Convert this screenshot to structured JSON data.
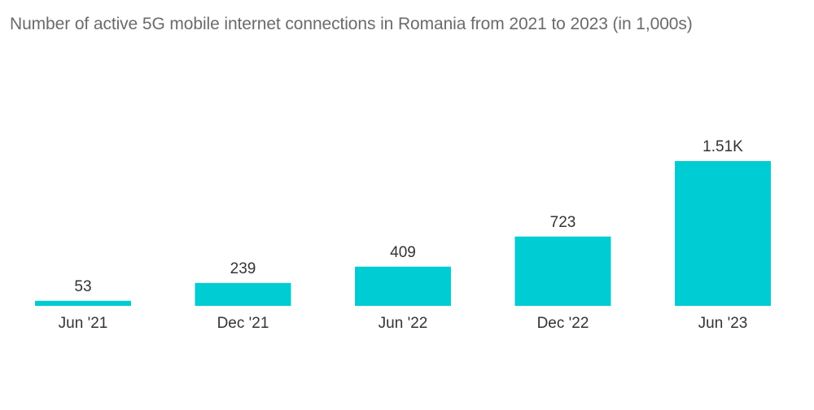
{
  "chart_data": {
    "type": "bar",
    "title": "Number of active 5G mobile internet connections in Romania from 2021 to 2023 (in 1,000s)",
    "categories": [
      "Jun '21",
      "Dec '21",
      "Jun '22",
      "Dec '22",
      "Jun '23"
    ],
    "values": [
      53,
      239,
      409,
      723,
      1510
    ],
    "data_labels": [
      "53",
      "239",
      "409",
      "723",
      "1.51K"
    ],
    "xlabel": "",
    "ylabel": "",
    "ylim": [
      0,
      1800
    ],
    "grid": false,
    "legend": "none",
    "bar_color": "#00ccd3"
  }
}
